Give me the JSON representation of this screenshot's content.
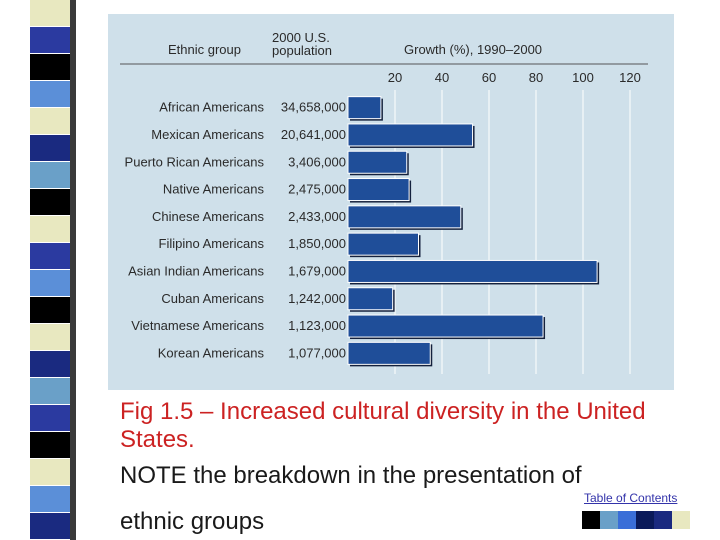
{
  "slide": {
    "caption": "Fig 1.5 – Increased cultural diversity in the United States.",
    "note_line1": "NOTE the breakdown in the presentation of",
    "note_line2": "ethnic groups",
    "toc_link": "Table of Contents",
    "stripe_colors": [
      "#e8e8c0",
      "#2b3aa0",
      "#000000",
      "#5b8fd8",
      "#e8e8c0",
      "#1a2a80",
      "#6aa0c8",
      "#000000",
      "#e8e8c0",
      "#2b3aa0",
      "#5b8fd8",
      "#000000",
      "#e8e8c0",
      "#1a2a80",
      "#6aa0c8",
      "#2b3aa0",
      "#000000",
      "#e8e8c0",
      "#5b8fd8",
      "#1a2a80"
    ],
    "nav_colors": [
      "#000000",
      "#6aa0c8",
      "#3a6ed8",
      "#0a1a5a",
      "#1a2a80",
      "#e8e8c0"
    ]
  },
  "chart_data": {
    "type": "bar",
    "orientation": "horizontal",
    "headers": {
      "group": "Ethnic group",
      "population_line1": "2000 U.S.",
      "population_line2": "population",
      "growth": "Growth (%), 1990–2000"
    },
    "ticks": [
      20,
      40,
      60,
      80,
      100,
      120
    ],
    "xlim": [
      0,
      120
    ],
    "bar_color": "#1f4e99",
    "categories": [
      "African Americans",
      "Mexican Americans",
      "Puerto Rican Americans",
      "Native Americans",
      "Chinese Americans",
      "Filipino Americans",
      "Asian Indian Americans",
      "Cuban Americans",
      "Vietnamese Americans",
      "Korean Americans"
    ],
    "population": [
      "34,658,000",
      "20,641,000",
      "3,406,000",
      "2,475,000",
      "2,433,000",
      "1,850,000",
      "1,679,000",
      "1,242,000",
      "1,123,000",
      "1,077,000"
    ],
    "values": [
      14,
      53,
      25,
      26,
      48,
      30,
      106,
      19,
      83,
      35
    ]
  }
}
